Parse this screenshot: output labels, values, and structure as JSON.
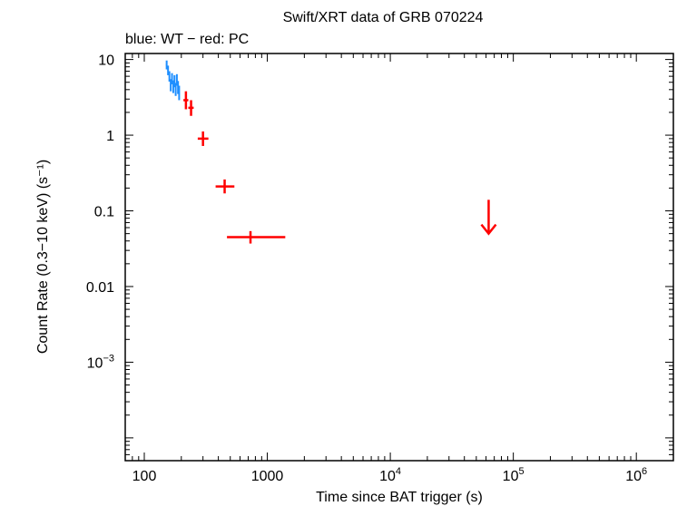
{
  "chart_data": {
    "type": "scatter",
    "title": "Swift/XRT data of GRB 070224",
    "subtitle": "blue: WT − red: PC",
    "xlabel": "Time since BAT trigger (s)",
    "ylabel": "Count Rate (0.3−10 keV) (s⁻¹)",
    "xscale": "log",
    "yscale": "log",
    "xlim": [
      70,
      2000000
    ],
    "ylim": [
      5e-05,
      12
    ],
    "x_ticks": [
      {
        "value": 100,
        "label": "100",
        "sup": ""
      },
      {
        "value": 1000,
        "label": "1000",
        "sup": ""
      },
      {
        "value": 10000,
        "label": "10",
        "sup": "4"
      },
      {
        "value": 100000,
        "label": "10",
        "sup": "5"
      },
      {
        "value": 1000000,
        "label": "10",
        "sup": "6"
      }
    ],
    "y_ticks": [
      {
        "value": 10,
        "label": "10",
        "sup": ""
      },
      {
        "value": 1,
        "label": "1",
        "sup": ""
      },
      {
        "value": 0.1,
        "label": "0.1",
        "sup": ""
      },
      {
        "value": 0.01,
        "label": "0.01",
        "sup": ""
      },
      {
        "value": 0.001,
        "label": "10",
        "sup": "−3"
      }
    ],
    "series": [
      {
        "name": "WT",
        "color": "#1f8fff",
        "points": [
          {
            "x": 152,
            "xlo": 150,
            "xhi": 154,
            "y": 8.5,
            "ylo": 7.4,
            "yhi": 9.7
          },
          {
            "x": 156,
            "xlo": 154,
            "xhi": 158,
            "y": 7.2,
            "ylo": 6.2,
            "yhi": 8.3
          },
          {
            "x": 160,
            "xlo": 158,
            "xhi": 162,
            "y": 6.0,
            "ylo": 5.1,
            "yhi": 7.0
          },
          {
            "x": 164,
            "xlo": 162,
            "xhi": 166,
            "y": 4.6,
            "ylo": 3.8,
            "yhi": 5.5
          },
          {
            "x": 168,
            "xlo": 166,
            "xhi": 170,
            "y": 5.6,
            "ylo": 4.7,
            "yhi": 6.6
          },
          {
            "x": 172,
            "xlo": 170,
            "xhi": 174,
            "y": 4.4,
            "ylo": 3.6,
            "yhi": 5.3
          },
          {
            "x": 176,
            "xlo": 174,
            "xhi": 178,
            "y": 5.2,
            "ylo": 4.3,
            "yhi": 6.2
          },
          {
            "x": 180,
            "xlo": 178,
            "xhi": 182,
            "y": 4.0,
            "ylo": 3.3,
            "yhi": 4.9
          },
          {
            "x": 184,
            "xlo": 182,
            "xhi": 186,
            "y": 5.4,
            "ylo": 4.5,
            "yhi": 6.4
          },
          {
            "x": 188,
            "xlo": 186,
            "xhi": 190,
            "y": 4.3,
            "ylo": 3.5,
            "yhi": 5.2
          },
          {
            "x": 192,
            "xlo": 190,
            "xhi": 194,
            "y": 3.7,
            "ylo": 2.9,
            "yhi": 4.5
          }
        ]
      },
      {
        "name": "PC",
        "color": "#ff0000",
        "points": [
          {
            "x": 218,
            "xlo": 208,
            "xhi": 228,
            "y": 2.9,
            "ylo": 2.2,
            "yhi": 3.8
          },
          {
            "x": 240,
            "xlo": 228,
            "xhi": 252,
            "y": 2.3,
            "ylo": 1.8,
            "yhi": 2.9
          },
          {
            "x": 300,
            "xlo": 272,
            "xhi": 332,
            "y": 0.9,
            "ylo": 0.72,
            "yhi": 1.12
          },
          {
            "x": 450,
            "xlo": 380,
            "xhi": 540,
            "y": 0.21,
            "ylo": 0.17,
            "yhi": 0.26
          },
          {
            "x": 730,
            "xlo": 470,
            "xhi": 1400,
            "y": 0.045,
            "ylo": 0.037,
            "yhi": 0.054
          }
        ]
      }
    ],
    "upper_limits": [
      {
        "name": "PC upper limit",
        "color": "#ff0000",
        "x": 63000,
        "y": 0.14,
        "y_tip": 0.05
      }
    ]
  }
}
